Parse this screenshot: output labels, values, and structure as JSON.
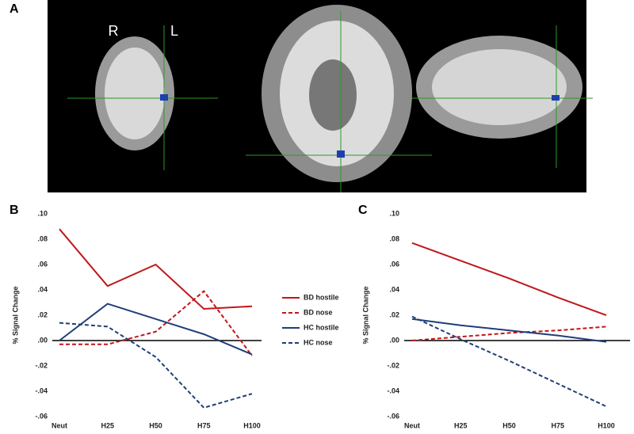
{
  "panel_labels": {
    "a": "A",
    "b": "B",
    "c": "C"
  },
  "image_labels": {
    "right": "R",
    "left": "L"
  },
  "chart_data": [
    {
      "type": "line",
      "ylabel": "% Signal Change",
      "categories": [
        "Neut",
        "H25",
        "H50",
        "H75",
        "H100"
      ],
      "ylim": [
        -0.06,
        0.1
      ],
      "yticks": [
        {
          "value": 0.1,
          "label": ".10"
        },
        {
          "value": 0.08,
          "label": ".08"
        },
        {
          "value": 0.06,
          "label": ".06"
        },
        {
          "value": 0.04,
          "label": ".04"
        },
        {
          "value": 0.02,
          "label": ".02"
        },
        {
          "value": 0,
          "label": ".00"
        },
        {
          "value": -0.02,
          "label": "-.02"
        },
        {
          "value": -0.04,
          "label": "-.04"
        },
        {
          "value": -0.06,
          "label": "-.06"
        }
      ],
      "legend": "right",
      "series": [
        {
          "name": "BD hostile",
          "color": "#c0171a",
          "dashed": false,
          "values": [
            0.088,
            0.043,
            0.06,
            0.025,
            0.027
          ]
        },
        {
          "name": "BD nose",
          "color": "#c0171a",
          "dashed": true,
          "values": [
            -0.003,
            -0.003,
            0.007,
            0.039,
            -0.012
          ]
        },
        {
          "name": "HC hostile",
          "color": "#1f3e78",
          "dashed": false,
          "values": [
            0,
            0.029,
            0.017,
            0.005,
            -0.011
          ]
        },
        {
          "name": "HC nose",
          "color": "#1f3e78",
          "dashed": true,
          "values": [
            0.014,
            0.011,
            -0.013,
            -0.053,
            -0.042
          ]
        }
      ]
    },
    {
      "type": "line",
      "ylabel": "% Signal Change",
      "categories": [
        "Neut",
        "H25",
        "H50",
        "H75",
        "H100"
      ],
      "ylim": [
        -0.06,
        0.1
      ],
      "yticks": [
        {
          "value": 0.1,
          "label": ".10"
        },
        {
          "value": 0.08,
          "label": ".08"
        },
        {
          "value": 0.06,
          "label": ".06"
        },
        {
          "value": 0.04,
          "label": ".04"
        },
        {
          "value": 0.02,
          "label": ".02"
        },
        {
          "value": 0,
          "label": ".00"
        },
        {
          "value": -0.02,
          "label": "-.02"
        },
        {
          "value": -0.04,
          "label": "-.04"
        },
        {
          "value": -0.06,
          "label": "-.06"
        }
      ],
      "series": [
        {
          "color": "#c0171a",
          "dashed": false,
          "values": [
            0.077,
            0.063,
            0.049,
            0.034,
            0.02
          ]
        },
        {
          "color": "#c0171a",
          "dashed": true,
          "values": [
            0,
            0.003,
            0.006,
            0.008,
            0.011
          ]
        },
        {
          "color": "#1f3e78",
          "dashed": false,
          "values": [
            0.017,
            0.012,
            0.008,
            0.004,
            -0.001
          ]
        },
        {
          "color": "#1f3e78",
          "dashed": true,
          "values": [
            0.019,
            0.001,
            -0.016,
            -0.034,
            -0.052
          ]
        }
      ]
    }
  ]
}
